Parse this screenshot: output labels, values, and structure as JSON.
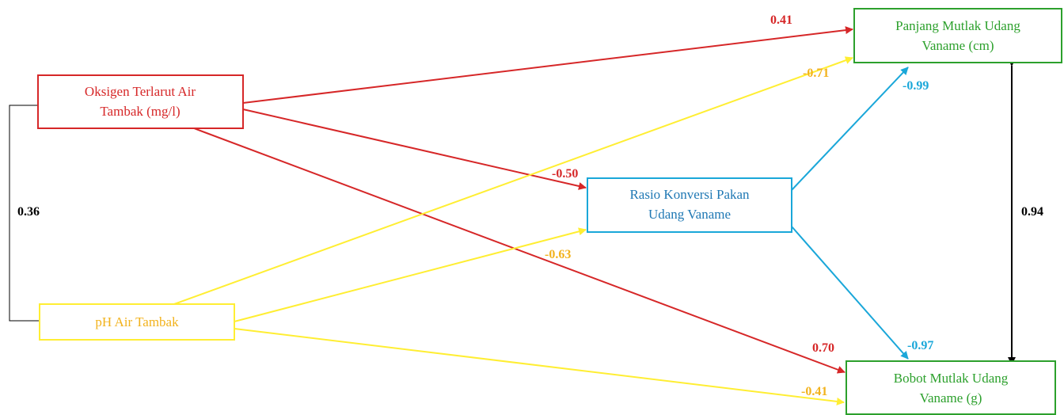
{
  "colors": {
    "red": "#d62728",
    "yellow": "#ffee33",
    "yellow_text": "#f2b21c",
    "blue": "#1aa7d9",
    "blue_text": "#1f78b4",
    "green": "#2ca02c",
    "black": "#000000"
  },
  "nodes": {
    "oksigen": {
      "line1": "Oksigen Terlarut Air",
      "line2": "Tambak (mg/l)"
    },
    "ph": {
      "line1": "pH Air Tambak"
    },
    "rasio": {
      "line1": "Rasio Konversi Pakan",
      "line2": "Udang Vaname"
    },
    "panjang": {
      "line1": "Panjang Mutlak Udang",
      "line2": "Vaname (cm)"
    },
    "bobot": {
      "line1": "Bobot Mutlak Udang",
      "line2": "Vaname (g)"
    }
  },
  "paths": {
    "oksigen_panjang": "0.41",
    "oksigen_rasio": "-0.50",
    "oksigen_bobot": "0.70",
    "ph_panjang": "-0.71",
    "ph_rasio": "-0.63",
    "ph_bobot": "-0.41",
    "rasio_panjang": "-0.99",
    "rasio_bobot": "-0.97",
    "oksigen_ph_corr": "0.36",
    "panjang_bobot_corr": "0.94"
  }
}
